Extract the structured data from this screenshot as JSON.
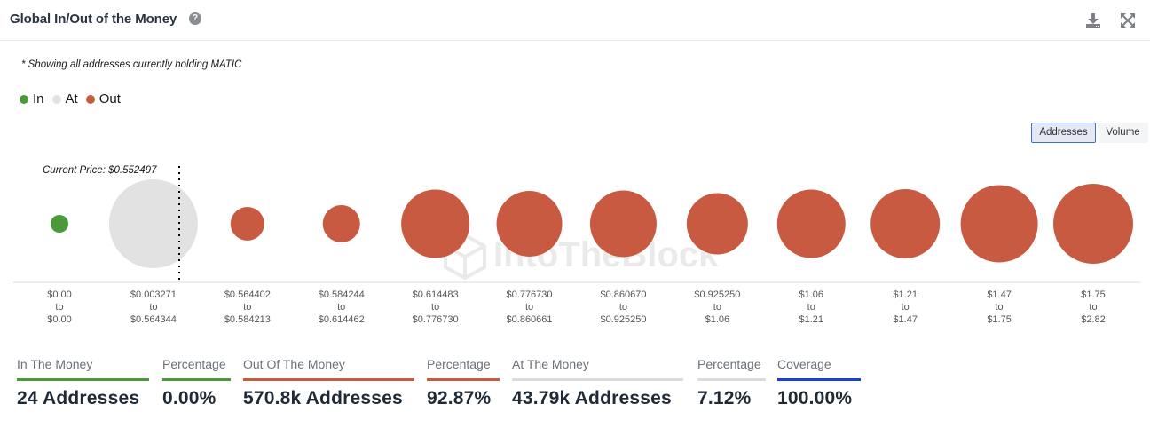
{
  "header": {
    "title": "Global In/Out of the Money",
    "help_icon": "question-circle-icon",
    "download_icon": "download-icon",
    "expand_icon": "expand-arrows-icon"
  },
  "note": "* Showing all addresses currently holding MATIC",
  "legend": [
    {
      "label": "In",
      "color": "#4a9a3a"
    },
    {
      "label": "At",
      "color": "#e2e2e2"
    },
    {
      "label": "Out",
      "color": "#c95a42"
    }
  ],
  "toggle": {
    "addresses_label": "Addresses",
    "volume_label": "Volume",
    "selected": "Addresses"
  },
  "chart_data": {
    "type": "bubble",
    "title": "Global In/Out of the Money",
    "current_price_label": "Current Price: $0.552497",
    "current_price": 0.552497,
    "categories": [
      {
        "from": "$0.00",
        "to": "$0.00",
        "status": "In"
      },
      {
        "from": "$0.003271",
        "to": "$0.564344",
        "status": "At"
      },
      {
        "from": "$0.564402",
        "to": "$0.584213",
        "status": "Out"
      },
      {
        "from": "$0.584244",
        "to": "$0.614462",
        "status": "Out"
      },
      {
        "from": "$0.614483",
        "to": "$0.776730",
        "status": "Out"
      },
      {
        "from": "$0.776730",
        "to": "$0.860661",
        "status": "Out"
      },
      {
        "from": "$0.860670",
        "to": "$0.925250",
        "status": "Out"
      },
      {
        "from": "$0.925250",
        "to": "$1.06",
        "status": "Out"
      },
      {
        "from": "$1.06",
        "to": "$1.21",
        "status": "Out"
      },
      {
        "from": "$1.21",
        "to": "$1.47",
        "status": "Out"
      },
      {
        "from": "$1.47",
        "to": "$1.75",
        "status": "Out"
      },
      {
        "from": "$1.75",
        "to": "$2.82",
        "status": "Out"
      }
    ],
    "relative_size": [
      0.2,
      1.0,
      0.38,
      0.42,
      0.77,
      0.74,
      0.75,
      0.69,
      0.77,
      0.78,
      0.87,
      0.9
    ],
    "tick_connector": "to",
    "colors": {
      "In": "#4a9a3a",
      "At": "#e2e2e2",
      "Out": "#c95a42"
    },
    "watermark": "IntoTheBlock"
  },
  "stats": [
    {
      "label": "In The Money",
      "value": "24 Addresses",
      "color": "#4a9a3a"
    },
    {
      "label": "Percentage",
      "value": "0.00%",
      "color": "#4a9a3a"
    },
    {
      "label": "Out Of The Money",
      "value": "570.8k Addresses",
      "color": "#c95a42"
    },
    {
      "label": "Percentage",
      "value": "92.87%",
      "color": "#c95a42"
    },
    {
      "label": "At The Money",
      "value": "43.79k Addresses",
      "color": "#dcdcdc"
    },
    {
      "label": "Percentage",
      "value": "7.12%",
      "color": "#dcdcdc"
    },
    {
      "label": "Coverage",
      "value": "100.00%",
      "color": "#1a3fd6"
    }
  ]
}
